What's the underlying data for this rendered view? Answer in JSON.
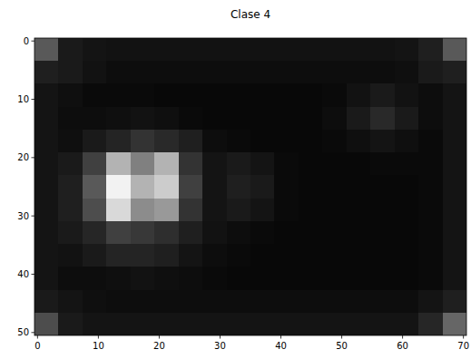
{
  "chart_data": {
    "type": "heatmap",
    "title": "Clase 4",
    "color": "gray",
    "xlim": [
      -0.5,
      70.5
    ],
    "ylim": [
      50.5,
      -0.5
    ],
    "xticks": [
      0,
      10,
      20,
      30,
      40,
      50,
      60,
      70
    ],
    "yticks": [
      0,
      10,
      20,
      30,
      40,
      50
    ],
    "zlim": [
      0,
      1
    ],
    "z": [
      [
        0.35,
        0.1,
        0.08,
        0.07,
        0.07,
        0.07,
        0.07,
        0.07,
        0.07,
        0.07,
        0.07,
        0.07,
        0.07,
        0.07,
        0.07,
        0.08,
        0.12,
        0.35
      ],
      [
        0.12,
        0.1,
        0.07,
        0.05,
        0.05,
        0.05,
        0.05,
        0.05,
        0.05,
        0.05,
        0.05,
        0.05,
        0.05,
        0.05,
        0.05,
        0.06,
        0.1,
        0.12
      ],
      [
        0.08,
        0.06,
        0.04,
        0.04,
        0.04,
        0.03,
        0.03,
        0.03,
        0.03,
        0.03,
        0.03,
        0.03,
        0.04,
        0.07,
        0.1,
        0.07,
        0.05,
        0.08
      ],
      [
        0.08,
        0.05,
        0.05,
        0.06,
        0.07,
        0.06,
        0.04,
        0.03,
        0.03,
        0.03,
        0.03,
        0.03,
        0.05,
        0.1,
        0.16,
        0.1,
        0.05,
        0.08
      ],
      [
        0.08,
        0.06,
        0.1,
        0.14,
        0.2,
        0.16,
        0.12,
        0.05,
        0.04,
        0.03,
        0.03,
        0.03,
        0.04,
        0.06,
        0.08,
        0.06,
        0.04,
        0.08
      ],
      [
        0.08,
        0.1,
        0.25,
        0.7,
        0.5,
        0.7,
        0.2,
        0.08,
        0.1,
        0.08,
        0.04,
        0.03,
        0.03,
        0.03,
        0.04,
        0.04,
        0.04,
        0.08
      ],
      [
        0.08,
        0.12,
        0.35,
        0.95,
        0.7,
        0.8,
        0.25,
        0.08,
        0.12,
        0.1,
        0.04,
        0.03,
        0.03,
        0.03,
        0.03,
        0.03,
        0.04,
        0.08
      ],
      [
        0.08,
        0.12,
        0.3,
        0.85,
        0.55,
        0.6,
        0.2,
        0.08,
        0.1,
        0.08,
        0.04,
        0.03,
        0.03,
        0.03,
        0.03,
        0.03,
        0.04,
        0.08
      ],
      [
        0.08,
        0.1,
        0.15,
        0.25,
        0.22,
        0.18,
        0.12,
        0.07,
        0.05,
        0.04,
        0.03,
        0.03,
        0.03,
        0.03,
        0.03,
        0.03,
        0.04,
        0.08
      ],
      [
        0.08,
        0.07,
        0.1,
        0.14,
        0.14,
        0.12,
        0.08,
        0.05,
        0.04,
        0.03,
        0.03,
        0.03,
        0.03,
        0.03,
        0.03,
        0.03,
        0.04,
        0.08
      ],
      [
        0.08,
        0.05,
        0.05,
        0.06,
        0.07,
        0.06,
        0.05,
        0.04,
        0.03,
        0.03,
        0.03,
        0.03,
        0.03,
        0.03,
        0.03,
        0.03,
        0.04,
        0.08
      ],
      [
        0.1,
        0.08,
        0.06,
        0.05,
        0.05,
        0.05,
        0.05,
        0.05,
        0.05,
        0.05,
        0.05,
        0.05,
        0.05,
        0.05,
        0.05,
        0.05,
        0.08,
        0.12
      ],
      [
        0.3,
        0.1,
        0.08,
        0.08,
        0.08,
        0.08,
        0.08,
        0.08,
        0.08,
        0.08,
        0.08,
        0.08,
        0.08,
        0.08,
        0.08,
        0.08,
        0.15,
        0.4
      ]
    ]
  }
}
